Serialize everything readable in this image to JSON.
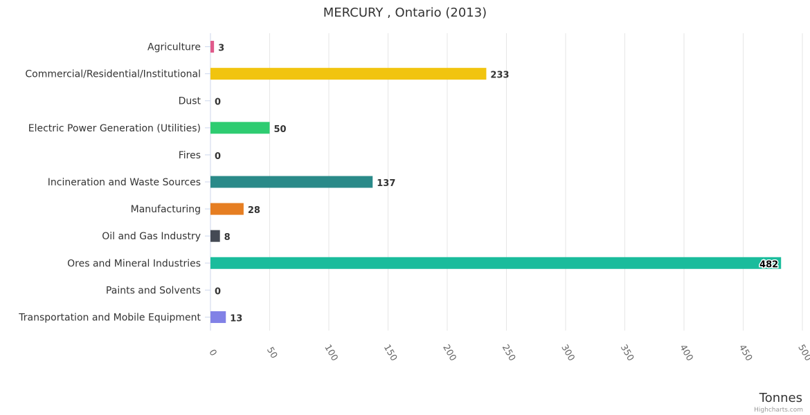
{
  "chart_data": {
    "type": "bar",
    "orientation": "horizontal",
    "title": "MERCURY , Ontario (2013)",
    "categories": [
      "Agriculture",
      "Commercial/Residential/Institutional",
      "Dust",
      "Electric Power Generation (Utilities)",
      "Fires",
      "Incineration and Waste Sources",
      "Manufacturing",
      "Oil and Gas Industry",
      "Ores and Mineral Industries",
      "Paints and Solvents",
      "Transportation and Mobile Equipment"
    ],
    "values": [
      3,
      233,
      0,
      50,
      0,
      137,
      28,
      8,
      482,
      0,
      13
    ],
    "colors": [
      "#e05a8a",
      "#f1c40f",
      "#7f8c8d",
      "#2ecc71",
      "#c0392b",
      "#2a8a89",
      "#e67e22",
      "#444a54",
      "#1abc9c",
      "#9b59b6",
      "#8181e6"
    ],
    "xlabel": "Tonnes",
    "xlim": [
      0,
      500
    ],
    "ticks": [
      0,
      50,
      100,
      150,
      200,
      250,
      300,
      350,
      400,
      450,
      500
    ],
    "grid": true,
    "credits": "Highcharts.com"
  }
}
